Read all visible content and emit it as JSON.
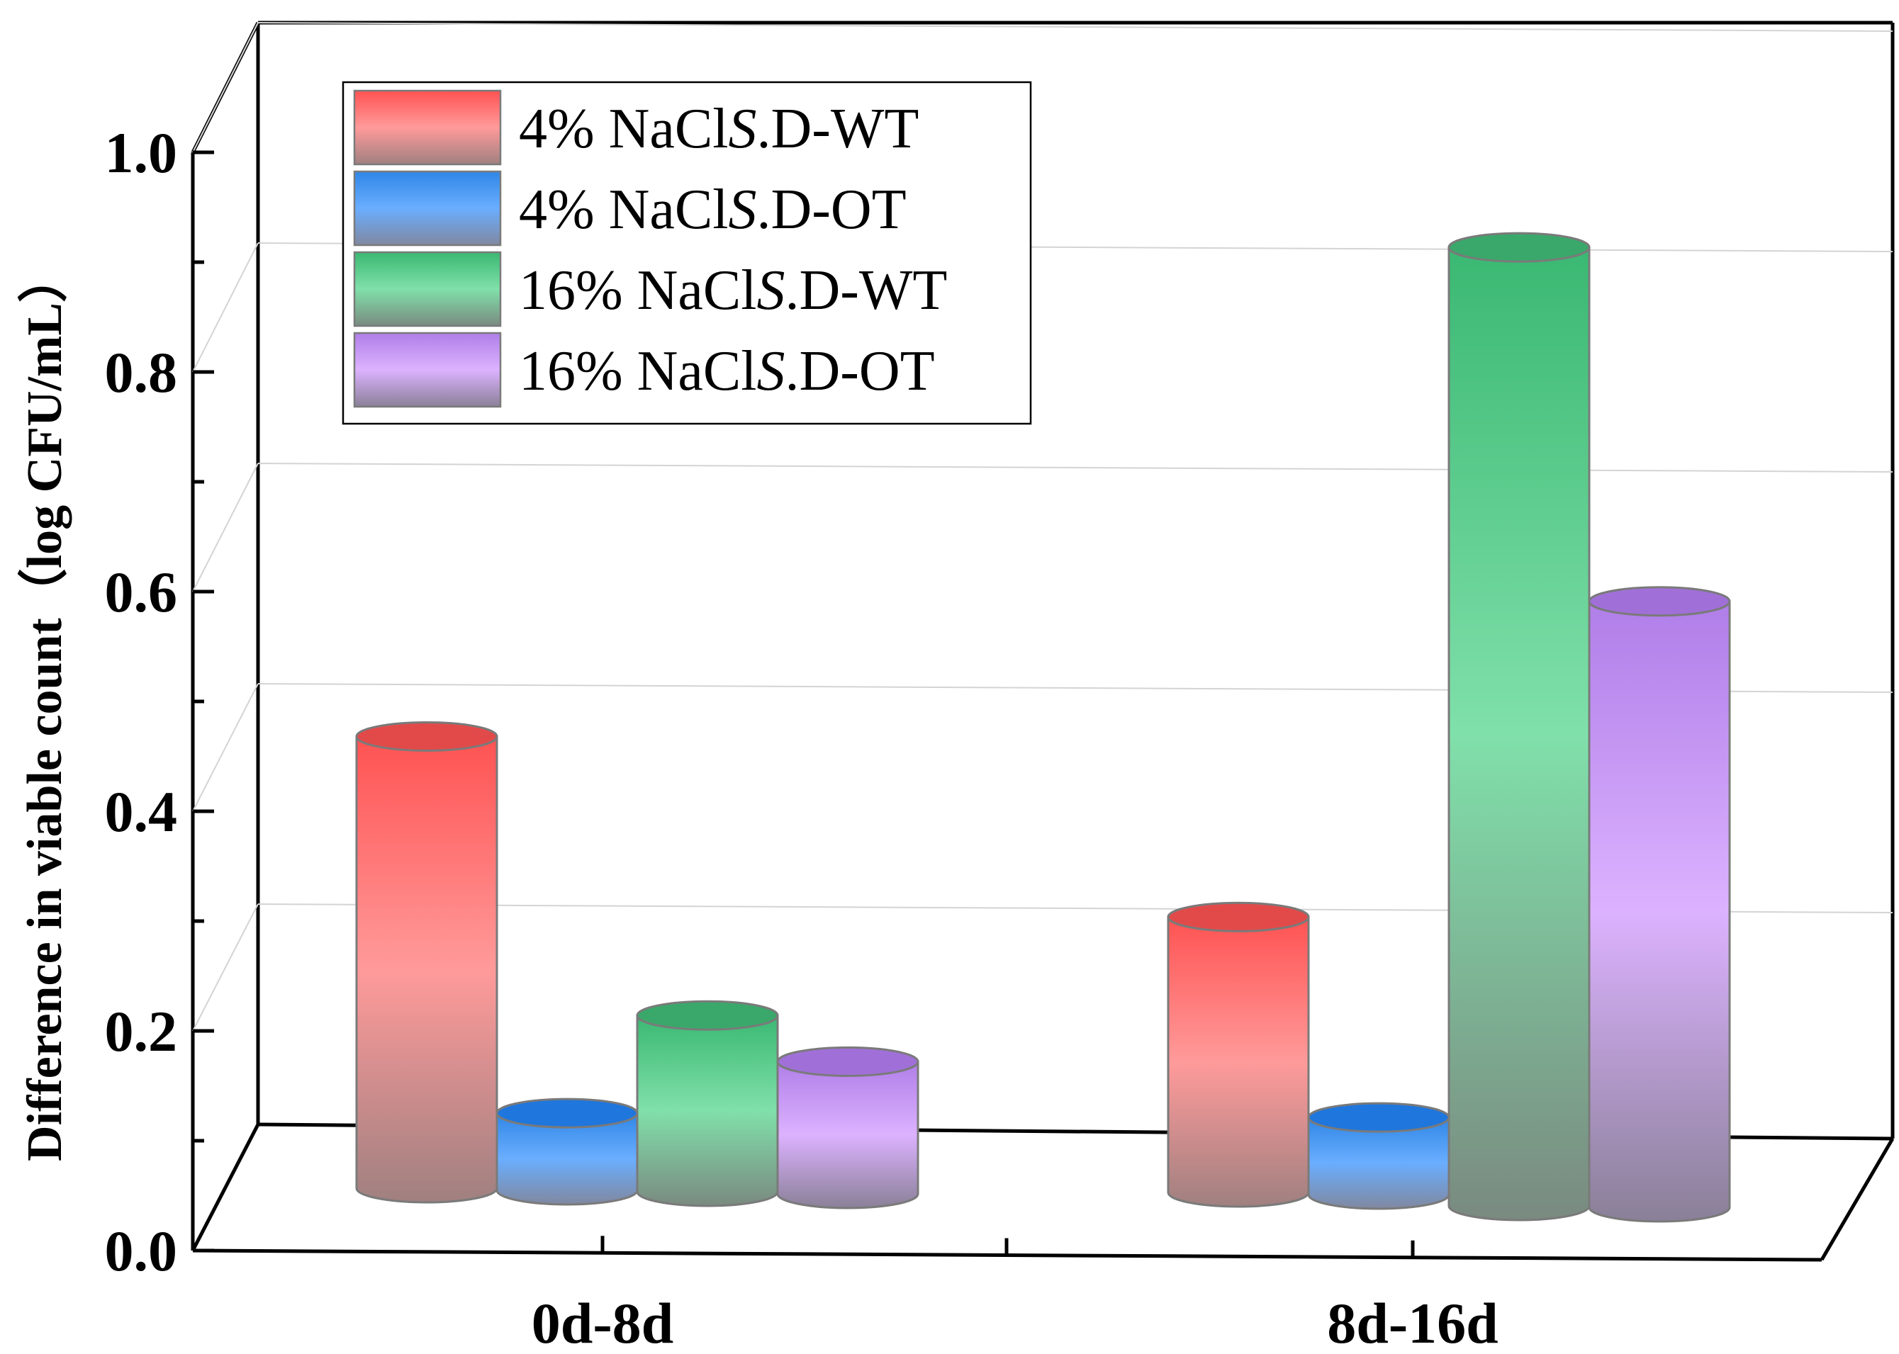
{
  "chart_data": {
    "type": "bar",
    "style": "3d-cylinder",
    "title": "",
    "xlabel": "",
    "ylabel": "Difference in viable count（log CFU/mL）",
    "ylim": [
      0,
      1.0
    ],
    "yticks": [
      0.0,
      0.2,
      0.4,
      0.6,
      0.8,
      1.0
    ],
    "ytick_labels": [
      "0.0",
      "0.2",
      "0.4",
      "0.6",
      "0.8",
      "1.0"
    ],
    "categories": [
      "0d-8d",
      "8d-16d"
    ],
    "grid": true,
    "legend_position": "top-left",
    "series": [
      {
        "name": "4% NaCl",
        "name_italic": "S",
        "name_suffix": ".D-WT",
        "color_top": "#ff5252",
        "color_mid": "#ff9a9a",
        "color_bottom": "#a08080",
        "color_cap": "#e24a4a",
        "values": [
          0.41,
          0.25
        ]
      },
      {
        "name": "4% NaCl",
        "name_italic": "S",
        "name_suffix": ".D-OT",
        "color_top": "#2f86e6",
        "color_mid": "#6aaeff",
        "color_bottom": "#8088a0",
        "color_cap": "#1f76dd",
        "values": [
          0.07,
          0.07
        ]
      },
      {
        "name": "16% NaCl",
        "name_italic": "S",
        "name_suffix": ".D-WT",
        "color_top": "#3ab872",
        "color_mid": "#80e0aa",
        "color_bottom": "#7a8a80",
        "color_cap": "#3aa86a",
        "values": [
          0.16,
          0.87
        ]
      },
      {
        "name": "16% NaCl",
        "name_italic": "S",
        "name_suffix": ".D-OT",
        "color_top": "#b07ee8",
        "color_mid": "#dcb2ff",
        "color_bottom": "#8a8098",
        "color_cap": "#a070d8",
        "values": [
          0.12,
          0.55
        ]
      }
    ]
  }
}
